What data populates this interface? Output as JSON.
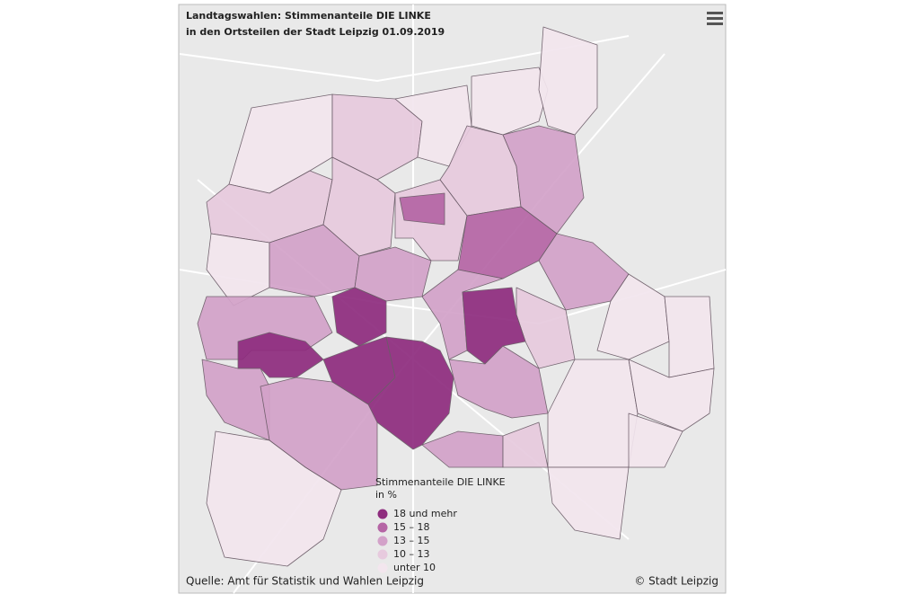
{
  "header": {
    "title_lines": [
      "Landtagswahlen: Stimmenanteile DIE LINKE",
      "in den Ortsteilen der Stadt Leipzig 01.09.2019"
    ]
  },
  "legend": {
    "title_lines": [
      "Stimmenanteile DIE LINKE",
      "in %"
    ],
    "items": [
      {
        "label": "18 und mehr",
        "color": "#8e2c7e"
      },
      {
        "label": "15 – 18",
        "color": "#b565a5"
      },
      {
        "label": "13 – 15",
        "color": "#d3a2c9"
      },
      {
        "label": "10 – 13",
        "color": "#e7cade"
      },
      {
        "label": "unter 10",
        "color": "#f3e6ee"
      }
    ]
  },
  "footer": {
    "source": "Quelle: Amt für Statistik und Wahlen Leipzig",
    "credit": "© Stadt Leipzig"
  }
}
